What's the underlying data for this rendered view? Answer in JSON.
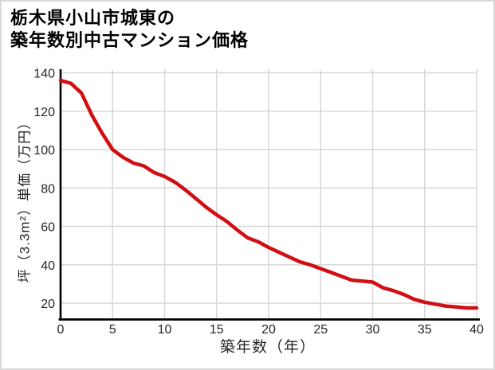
{
  "page": {
    "title_line1": "栃木県小山市城東の",
    "title_line2": "築年数別中古マンション価格"
  },
  "chart_data": {
    "type": "line",
    "title": "栃木県小山市城東の築年数別中古マンション価格",
    "xlabel": "築年数（年）",
    "ylabel": "坪（3.3m²）単価（万円）",
    "x": [
      0,
      1,
      2,
      3,
      4,
      5,
      6,
      7,
      8,
      9,
      10,
      11,
      12,
      13,
      14,
      15,
      16,
      17,
      18,
      19,
      20,
      21,
      22,
      23,
      24,
      25,
      26,
      27,
      28,
      29,
      30,
      31,
      32,
      33,
      34,
      35,
      36,
      37,
      38,
      39,
      40
    ],
    "values": [
      136,
      134.5,
      129.5,
      118,
      108.5,
      100,
      96,
      93,
      91.5,
      88,
      86,
      83,
      79,
      74.5,
      70,
      66,
      62.5,
      58,
      54,
      52,
      49,
      46.5,
      44,
      41.5,
      40,
      38,
      36,
      34,
      32,
      31.5,
      31,
      28,
      26.5,
      24.5,
      22,
      20.5,
      19.5,
      18.5,
      18,
      17.5,
      17.5
    ],
    "x_ticks": [
      0,
      5,
      10,
      15,
      20,
      25,
      30,
      35,
      40
    ],
    "y_ticks": [
      20,
      40,
      60,
      80,
      100,
      120,
      140
    ],
    "xlim": [
      0,
      40
    ],
    "ylim": [
      11,
      142
    ],
    "grid": true,
    "legend": false,
    "line_color": "#d10e12"
  },
  "colors": {
    "background": "#ffffff",
    "frame_border": "#d9d9d9",
    "grid": "#d8d8d8",
    "axis": "#000000",
    "tick_text": "#262626",
    "title_text": "#000000",
    "line": "#d10e12"
  }
}
